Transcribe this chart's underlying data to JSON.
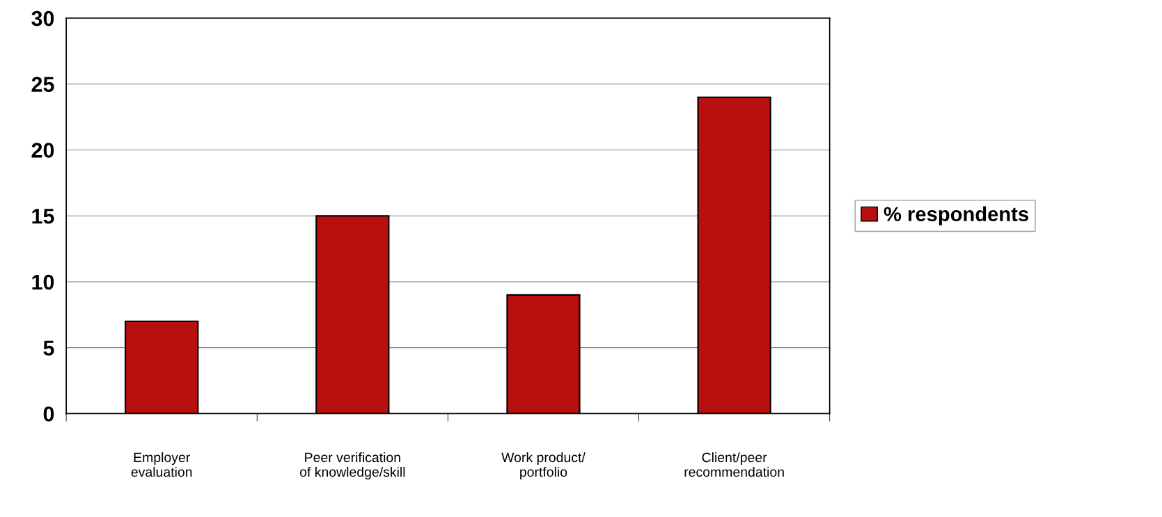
{
  "chart_data": {
    "type": "bar",
    "categories": [
      "Employer\nevaluation",
      "Peer verification\nof knowledge/skill",
      "Work product/\nportfolio",
      "Client/peer\nrecommendation"
    ],
    "series": [
      {
        "name": "% respondents",
        "color": "#b80f0f",
        "values": [
          7,
          15,
          9,
          24
        ]
      }
    ],
    "ylim": [
      0,
      30
    ],
    "yticks": [
      0,
      5,
      10,
      15,
      20,
      25,
      30
    ],
    "grid": "y",
    "legend": "right"
  }
}
